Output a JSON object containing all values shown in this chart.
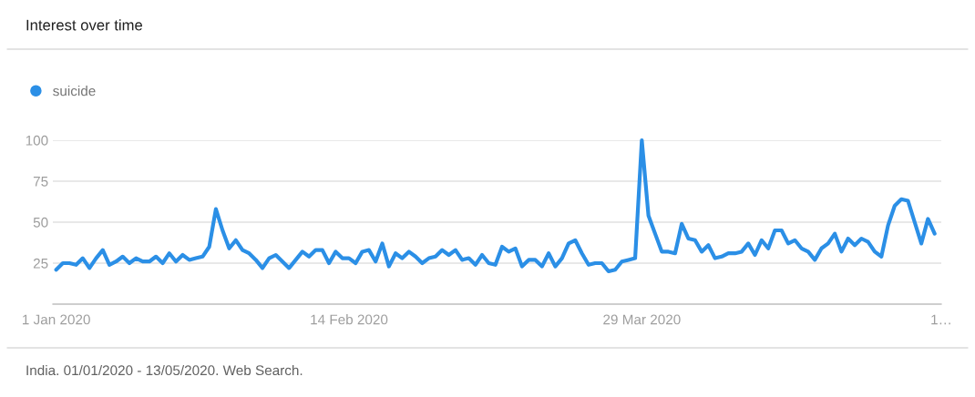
{
  "chart_data": {
    "type": "line",
    "title": "Interest over time",
    "annotations": [
      "India. 01/01/2020 - 13/05/2020. Web Search."
    ],
    "x": [
      "2020-01-01",
      "2020-01-02",
      "2020-01-03",
      "2020-01-04",
      "2020-01-05",
      "2020-01-06",
      "2020-01-07",
      "2020-01-08",
      "2020-01-09",
      "2020-01-10",
      "2020-01-11",
      "2020-01-12",
      "2020-01-13",
      "2020-01-14",
      "2020-01-15",
      "2020-01-16",
      "2020-01-17",
      "2020-01-18",
      "2020-01-19",
      "2020-01-20",
      "2020-01-21",
      "2020-01-22",
      "2020-01-23",
      "2020-01-24",
      "2020-01-25",
      "2020-01-26",
      "2020-01-27",
      "2020-01-28",
      "2020-01-29",
      "2020-01-30",
      "2020-01-31",
      "2020-02-01",
      "2020-02-02",
      "2020-02-03",
      "2020-02-04",
      "2020-02-05",
      "2020-02-06",
      "2020-02-07",
      "2020-02-08",
      "2020-02-09",
      "2020-02-10",
      "2020-02-11",
      "2020-02-12",
      "2020-02-13",
      "2020-02-14",
      "2020-02-15",
      "2020-02-16",
      "2020-02-17",
      "2020-02-18",
      "2020-02-19",
      "2020-02-20",
      "2020-02-21",
      "2020-02-22",
      "2020-02-23",
      "2020-02-24",
      "2020-02-25",
      "2020-02-26",
      "2020-02-27",
      "2020-02-28",
      "2020-02-29",
      "2020-03-01",
      "2020-03-02",
      "2020-03-03",
      "2020-03-04",
      "2020-03-05",
      "2020-03-06",
      "2020-03-07",
      "2020-03-08",
      "2020-03-09",
      "2020-03-10",
      "2020-03-11",
      "2020-03-12",
      "2020-03-13",
      "2020-03-14",
      "2020-03-15",
      "2020-03-16",
      "2020-03-17",
      "2020-03-18",
      "2020-03-19",
      "2020-03-20",
      "2020-03-21",
      "2020-03-22",
      "2020-03-23",
      "2020-03-24",
      "2020-03-25",
      "2020-03-26",
      "2020-03-27",
      "2020-03-28",
      "2020-03-29",
      "2020-03-30",
      "2020-03-31",
      "2020-04-01",
      "2020-04-02",
      "2020-04-03",
      "2020-04-04",
      "2020-04-05",
      "2020-04-06",
      "2020-04-07",
      "2020-04-08",
      "2020-04-09",
      "2020-04-10",
      "2020-04-11",
      "2020-04-12",
      "2020-04-13",
      "2020-04-14",
      "2020-04-15",
      "2020-04-16",
      "2020-04-17",
      "2020-04-18",
      "2020-04-19",
      "2020-04-20",
      "2020-04-21",
      "2020-04-22",
      "2020-04-23",
      "2020-04-24",
      "2020-04-25",
      "2020-04-26",
      "2020-04-27",
      "2020-04-28",
      "2020-04-29",
      "2020-04-30",
      "2020-05-01",
      "2020-05-02",
      "2020-05-03",
      "2020-05-04",
      "2020-05-05",
      "2020-05-06",
      "2020-05-07",
      "2020-05-08",
      "2020-05-09",
      "2020-05-10",
      "2020-05-11",
      "2020-05-12"
    ],
    "series": [
      {
        "name": "suicide",
        "color": "#2b8fe6",
        "values": [
          21,
          25,
          25,
          24,
          28,
          22,
          28,
          33,
          24,
          26,
          29,
          25,
          28,
          26,
          26,
          29,
          25,
          31,
          26,
          30,
          27,
          28,
          29,
          35,
          58,
          45,
          34,
          39,
          33,
          31,
          27,
          22,
          28,
          30,
          26,
          22,
          27,
          32,
          29,
          33,
          33,
          25,
          32,
          28,
          28,
          25,
          32,
          33,
          26,
          37,
          23,
          31,
          28,
          32,
          29,
          25,
          28,
          29,
          33,
          30,
          33,
          27,
          28,
          24,
          30,
          25,
          24,
          35,
          32,
          34,
          23,
          27,
          27,
          23,
          31,
          23,
          28,
          37,
          39,
          31,
          24,
          25,
          25,
          20,
          21,
          26,
          27,
          28,
          100,
          54,
          43,
          32,
          32,
          31,
          49,
          40,
          39,
          32,
          36,
          28,
          29,
          31,
          31,
          32,
          37,
          30,
          39,
          34,
          45,
          45,
          37,
          39,
          34,
          32,
          27,
          34,
          37,
          43,
          32,
          40,
          36,
          40,
          38,
          32,
          29,
          48,
          60,
          64,
          63,
          50,
          37,
          52,
          43
        ]
      }
    ],
    "xlim": [
      "2019-12-31T12:00",
      "2020-05-13"
    ],
    "xticks": [
      {
        "value": "2020-01-01",
        "label": "1 Jan 2020"
      },
      {
        "value": "2020-02-14",
        "label": "14 Feb 2020"
      },
      {
        "value": "2020-03-29",
        "label": "29 Mar 2020"
      },
      {
        "value": "2020-05-13",
        "label": "1…"
      }
    ],
    "ylim": [
      0,
      100
    ],
    "yticks": [
      25,
      50,
      75,
      100
    ],
    "grid": "y",
    "legend": "top left",
    "marker": "none",
    "line_style": "solid"
  }
}
